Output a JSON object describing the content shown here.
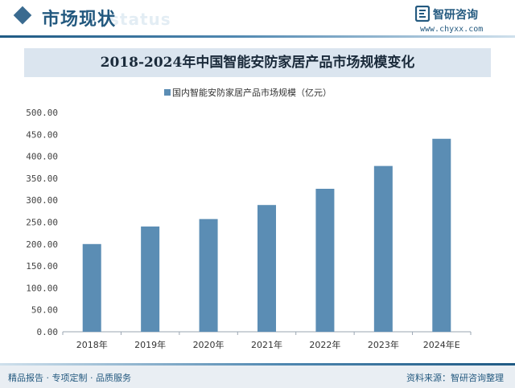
{
  "header": {
    "section_title": "市场现状",
    "ghost_text": "status",
    "logo_name": "智研咨询",
    "logo_url": "www.chyxx.com"
  },
  "footer": {
    "left_text": "精品报告 · 专项定制 · 品质服务",
    "right_text": "资料来源：智研咨询整理"
  },
  "colors": {
    "accent": "#23597f",
    "bar": "#5b8db4",
    "title_band": "#dbe5ef"
  },
  "chart_data": {
    "type": "bar",
    "title": "2018-2024年中国智能安防家居产品市场规模变化",
    "categories": [
      "2018年",
      "2019年",
      "2020年",
      "2021年",
      "2022年",
      "2023年",
      "2024年E"
    ],
    "series": [
      {
        "name": "国内智能安防家居产品市场规模（亿元）",
        "values": [
          200,
          240,
          257,
          289,
          326,
          378,
          440
        ]
      }
    ],
    "yticks": [
      "0.00",
      "50.00",
      "100.00",
      "150.00",
      "200.00",
      "250.00",
      "300.00",
      "350.00",
      "400.00",
      "450.00",
      "500.00"
    ],
    "ylim": [
      0,
      500
    ],
    "xlabel": "",
    "ylabel": "",
    "grid": false,
    "legend_position": "top"
  }
}
